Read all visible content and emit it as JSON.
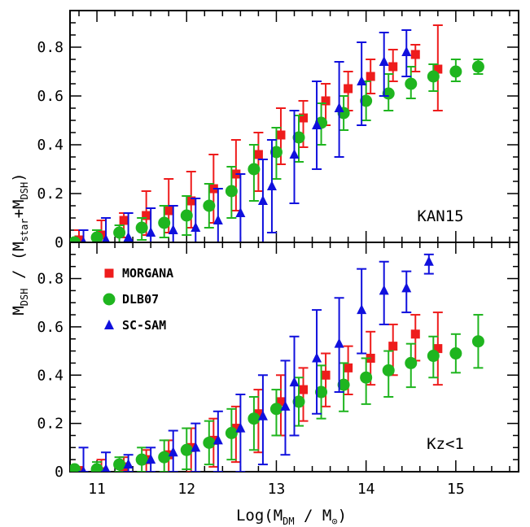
{
  "colors": {
    "morgana": "#ee1c1c",
    "dlb07": "#1fb51f",
    "scsam": "#1010dd"
  },
  "labels": {
    "xlabel_main": "Log(M",
    "xlabel_sub": "DM",
    "xlabel_mid": " / M",
    "xlabel_sun": "⊙",
    "xlabel_end": ")",
    "ylabel_main": "M",
    "ylabel_sub": "DSH",
    "ylabel_mid": " / (M",
    "ylabel_sub2": "star",
    "ylabel_mid2": "+M",
    "ylabel_sub3": "DSH",
    "ylabel_end": ")"
  },
  "chart_data": [
    {
      "type": "scatter",
      "panel": "top",
      "annotation": "KAN15",
      "xlim": [
        10.7,
        15.7
      ],
      "ylim": [
        0,
        0.95
      ],
      "xticks": [
        "11",
        "12",
        "13",
        "14",
        "15"
      ],
      "yticks": [
        "0",
        "0.2",
        "0.4",
        "0.6",
        "0.8"
      ],
      "series": [
        {
          "name": "MORGANA",
          "marker": "square",
          "color_key": "morgana",
          "points": [
            {
              "x": 10.8,
              "y": 0.01,
              "lo": 0.0,
              "hi": 0.05
            },
            {
              "x": 11.05,
              "y": 0.03,
              "lo": 0.0,
              "hi": 0.09
            },
            {
              "x": 11.3,
              "y": 0.09,
              "lo": 0.02,
              "hi": 0.12
            },
            {
              "x": 11.55,
              "y": 0.11,
              "lo": 0.03,
              "hi": 0.21
            },
            {
              "x": 11.8,
              "y": 0.13,
              "lo": 0.04,
              "hi": 0.26
            },
            {
              "x": 12.05,
              "y": 0.17,
              "lo": 0.06,
              "hi": 0.29
            },
            {
              "x": 12.3,
              "y": 0.22,
              "lo": 0.08,
              "hi": 0.36
            },
            {
              "x": 12.55,
              "y": 0.28,
              "lo": 0.13,
              "hi": 0.42
            },
            {
              "x": 12.8,
              "y": 0.36,
              "lo": 0.21,
              "hi": 0.45
            },
            {
              "x": 13.05,
              "y": 0.44,
              "lo": 0.32,
              "hi": 0.55
            },
            {
              "x": 13.3,
              "y": 0.51,
              "lo": 0.39,
              "hi": 0.58
            },
            {
              "x": 13.55,
              "y": 0.58,
              "lo": 0.48,
              "hi": 0.65
            },
            {
              "x": 13.8,
              "y": 0.63,
              "lo": 0.54,
              "hi": 0.7
            },
            {
              "x": 14.05,
              "y": 0.68,
              "lo": 0.61,
              "hi": 0.75
            },
            {
              "x": 14.3,
              "y": 0.72,
              "lo": 0.66,
              "hi": 0.79
            },
            {
              "x": 14.55,
              "y": 0.77,
              "lo": 0.7,
              "hi": 0.81
            },
            {
              "x": 14.8,
              "y": 0.71,
              "lo": 0.54,
              "hi": 0.89
            }
          ]
        },
        {
          "name": "DLB07",
          "marker": "circle",
          "color_key": "dlb07",
          "points": [
            {
              "x": 10.75,
              "y": 0.0,
              "lo": 0.0,
              "hi": 0.01
            },
            {
              "x": 11.0,
              "y": 0.02,
              "lo": 0.0,
              "hi": 0.05
            },
            {
              "x": 11.25,
              "y": 0.04,
              "lo": 0.0,
              "hi": 0.07
            },
            {
              "x": 11.5,
              "y": 0.06,
              "lo": 0.01,
              "hi": 0.1
            },
            {
              "x": 11.75,
              "y": 0.08,
              "lo": 0.02,
              "hi": 0.15
            },
            {
              "x": 12.0,
              "y": 0.11,
              "lo": 0.03,
              "hi": 0.19
            },
            {
              "x": 12.25,
              "y": 0.15,
              "lo": 0.06,
              "hi": 0.24
            },
            {
              "x": 12.5,
              "y": 0.21,
              "lo": 0.1,
              "hi": 0.31
            },
            {
              "x": 12.75,
              "y": 0.3,
              "lo": 0.17,
              "hi": 0.4
            },
            {
              "x": 13.0,
              "y": 0.37,
              "lo": 0.26,
              "hi": 0.47
            },
            {
              "x": 13.25,
              "y": 0.43,
              "lo": 0.33,
              "hi": 0.52
            },
            {
              "x": 13.5,
              "y": 0.49,
              "lo": 0.4,
              "hi": 0.57
            },
            {
              "x": 13.75,
              "y": 0.53,
              "lo": 0.46,
              "hi": 0.6
            },
            {
              "x": 14.0,
              "y": 0.58,
              "lo": 0.5,
              "hi": 0.66
            },
            {
              "x": 14.25,
              "y": 0.61,
              "lo": 0.54,
              "hi": 0.69
            },
            {
              "x": 14.5,
              "y": 0.65,
              "lo": 0.59,
              "hi": 0.72
            },
            {
              "x": 14.75,
              "y": 0.68,
              "lo": 0.62,
              "hi": 0.73
            },
            {
              "x": 15.0,
              "y": 0.7,
              "lo": 0.66,
              "hi": 0.75
            },
            {
              "x": 15.25,
              "y": 0.72,
              "lo": 0.69,
              "hi": 0.75
            }
          ]
        },
        {
          "name": "SC-SAM",
          "marker": "triangle",
          "color_key": "scsam",
          "points": [
            {
              "x": 10.85,
              "y": 0.0,
              "lo": 0.0,
              "hi": 0.05
            },
            {
              "x": 11.1,
              "y": 0.01,
              "lo": 0.0,
              "hi": 0.1
            },
            {
              "x": 11.35,
              "y": 0.02,
              "lo": 0.0,
              "hi": 0.12
            },
            {
              "x": 11.6,
              "y": 0.04,
              "lo": 0.0,
              "hi": 0.14
            },
            {
              "x": 11.85,
              "y": 0.05,
              "lo": 0.0,
              "hi": 0.15
            },
            {
              "x": 12.1,
              "y": 0.06,
              "lo": 0.0,
              "hi": 0.18
            },
            {
              "x": 12.35,
              "y": 0.09,
              "lo": 0.0,
              "hi": 0.22
            },
            {
              "x": 12.6,
              "y": 0.12,
              "lo": 0.0,
              "hi": 0.28
            },
            {
              "x": 12.85,
              "y": 0.17,
              "lo": 0.0,
              "hi": 0.34
            },
            {
              "x": 12.95,
              "y": 0.23,
              "lo": 0.04,
              "hi": 0.42
            },
            {
              "x": 13.2,
              "y": 0.36,
              "lo": 0.16,
              "hi": 0.54
            },
            {
              "x": 13.45,
              "y": 0.48,
              "lo": 0.3,
              "hi": 0.66
            },
            {
              "x": 13.7,
              "y": 0.55,
              "lo": 0.35,
              "hi": 0.74
            },
            {
              "x": 13.95,
              "y": 0.66,
              "lo": 0.48,
              "hi": 0.82
            },
            {
              "x": 14.2,
              "y": 0.74,
              "lo": 0.6,
              "hi": 0.86
            },
            {
              "x": 14.45,
              "y": 0.78,
              "lo": 0.68,
              "hi": 0.87
            }
          ]
        }
      ]
    },
    {
      "type": "scatter",
      "panel": "bottom",
      "annotation": "Kz<1",
      "xlim": [
        10.7,
        15.7
      ],
      "ylim": [
        0,
        0.95
      ],
      "xticks": [
        "11",
        "12",
        "13",
        "14",
        "15"
      ],
      "yticks": [
        "0",
        "0.2",
        "0.4",
        "0.6",
        "0.8"
      ],
      "legend": {
        "placement": "top-left"
      },
      "series": [
        {
          "name": "MORGANA",
          "marker": "square",
          "color_key": "morgana",
          "points": [
            {
              "x": 10.8,
              "y": 0.0,
              "lo": 0.0,
              "hi": 0.02
            },
            {
              "x": 11.05,
              "y": 0.0,
              "lo": 0.0,
              "hi": 0.05
            },
            {
              "x": 11.3,
              "y": 0.02,
              "lo": 0.0,
              "hi": 0.06
            },
            {
              "x": 11.55,
              "y": 0.05,
              "lo": 0.0,
              "hi": 0.09
            },
            {
              "x": 11.8,
              "y": 0.07,
              "lo": 0.0,
              "hi": 0.13
            },
            {
              "x": 12.05,
              "y": 0.1,
              "lo": 0.0,
              "hi": 0.18
            },
            {
              "x": 12.3,
              "y": 0.13,
              "lo": 0.02,
              "hi": 0.22
            },
            {
              "x": 12.55,
              "y": 0.18,
              "lo": 0.04,
              "hi": 0.27
            },
            {
              "x": 12.8,
              "y": 0.24,
              "lo": 0.08,
              "hi": 0.34
            },
            {
              "x": 13.05,
              "y": 0.29,
              "lo": 0.15,
              "hi": 0.4
            },
            {
              "x": 13.3,
              "y": 0.34,
              "lo": 0.21,
              "hi": 0.43
            },
            {
              "x": 13.55,
              "y": 0.4,
              "lo": 0.27,
              "hi": 0.49
            },
            {
              "x": 13.8,
              "y": 0.43,
              "lo": 0.32,
              "hi": 0.52
            },
            {
              "x": 14.05,
              "y": 0.47,
              "lo": 0.36,
              "hi": 0.58
            },
            {
              "x": 14.3,
              "y": 0.52,
              "lo": 0.4,
              "hi": 0.61
            },
            {
              "x": 14.55,
              "y": 0.57,
              "lo": 0.46,
              "hi": 0.65
            },
            {
              "x": 14.8,
              "y": 0.51,
              "lo": 0.36,
              "hi": 0.66
            }
          ]
        },
        {
          "name": "DLB07",
          "marker": "circle",
          "color_key": "dlb07",
          "points": [
            {
              "x": 10.75,
              "y": 0.01,
              "lo": 0.0,
              "hi": 0.02
            },
            {
              "x": 11.0,
              "y": 0.01,
              "lo": 0.0,
              "hi": 0.04
            },
            {
              "x": 11.25,
              "y": 0.03,
              "lo": 0.0,
              "hi": 0.06
            },
            {
              "x": 11.5,
              "y": 0.05,
              "lo": 0.0,
              "hi": 0.1
            },
            {
              "x": 11.75,
              "y": 0.06,
              "lo": 0.0,
              "hi": 0.13
            },
            {
              "x": 12.0,
              "y": 0.09,
              "lo": 0.01,
              "hi": 0.18
            },
            {
              "x": 12.25,
              "y": 0.12,
              "lo": 0.03,
              "hi": 0.21
            },
            {
              "x": 12.5,
              "y": 0.16,
              "lo": 0.05,
              "hi": 0.26
            },
            {
              "x": 12.75,
              "y": 0.22,
              "lo": 0.09,
              "hi": 0.31
            },
            {
              "x": 13.0,
              "y": 0.26,
              "lo": 0.15,
              "hi": 0.34
            },
            {
              "x": 13.25,
              "y": 0.29,
              "lo": 0.19,
              "hi": 0.39
            },
            {
              "x": 13.5,
              "y": 0.33,
              "lo": 0.22,
              "hi": 0.44
            },
            {
              "x": 13.75,
              "y": 0.36,
              "lo": 0.25,
              "hi": 0.45
            },
            {
              "x": 14.0,
              "y": 0.39,
              "lo": 0.28,
              "hi": 0.47
            },
            {
              "x": 14.25,
              "y": 0.42,
              "lo": 0.31,
              "hi": 0.5
            },
            {
              "x": 14.5,
              "y": 0.45,
              "lo": 0.35,
              "hi": 0.53
            },
            {
              "x": 14.75,
              "y": 0.48,
              "lo": 0.39,
              "hi": 0.56
            },
            {
              "x": 15.0,
              "y": 0.49,
              "lo": 0.41,
              "hi": 0.57
            },
            {
              "x": 15.25,
              "y": 0.54,
              "lo": 0.43,
              "hi": 0.65
            }
          ]
        },
        {
          "name": "SC-SAM",
          "marker": "triangle",
          "color_key": "scsam",
          "points": [
            {
              "x": 10.85,
              "y": 0.0,
              "lo": 0.0,
              "hi": 0.1
            },
            {
              "x": 11.1,
              "y": 0.01,
              "lo": 0.0,
              "hi": 0.08
            },
            {
              "x": 11.35,
              "y": 0.03,
              "lo": 0.0,
              "hi": 0.07
            },
            {
              "x": 11.6,
              "y": 0.05,
              "lo": 0.0,
              "hi": 0.1
            },
            {
              "x": 11.85,
              "y": 0.08,
              "lo": 0.0,
              "hi": 0.17
            },
            {
              "x": 12.1,
              "y": 0.1,
              "lo": 0.0,
              "hi": 0.2
            },
            {
              "x": 12.35,
              "y": 0.13,
              "lo": 0.0,
              "hi": 0.25
            },
            {
              "x": 12.6,
              "y": 0.18,
              "lo": 0.0,
              "hi": 0.32
            },
            {
              "x": 12.85,
              "y": 0.23,
              "lo": 0.03,
              "hi": 0.4
            },
            {
              "x": 13.1,
              "y": 0.27,
              "lo": 0.07,
              "hi": 0.46
            },
            {
              "x": 13.2,
              "y": 0.37,
              "lo": 0.15,
              "hi": 0.56
            },
            {
              "x": 13.45,
              "y": 0.47,
              "lo": 0.24,
              "hi": 0.67
            },
            {
              "x": 13.7,
              "y": 0.53,
              "lo": 0.33,
              "hi": 0.72
            },
            {
              "x": 13.95,
              "y": 0.67,
              "lo": 0.49,
              "hi": 0.84
            },
            {
              "x": 14.2,
              "y": 0.75,
              "lo": 0.61,
              "hi": 0.87
            },
            {
              "x": 14.45,
              "y": 0.76,
              "lo": 0.66,
              "hi": 0.83
            },
            {
              "x": 14.7,
              "y": 0.87,
              "lo": 0.82,
              "hi": 0.9
            }
          ]
        }
      ]
    }
  ]
}
